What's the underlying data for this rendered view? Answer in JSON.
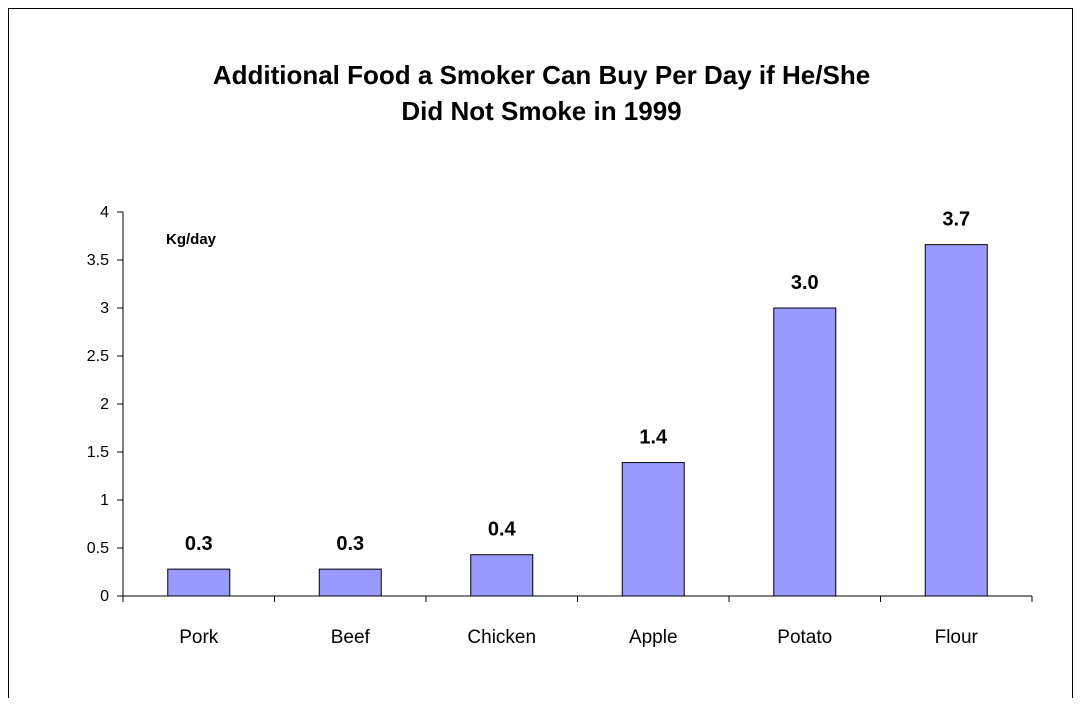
{
  "chart_data": {
    "type": "bar",
    "title_lines": [
      "Additional Food a Smoker Can Buy Per Day if He/She",
      "Did Not Smoke in 1999"
    ],
    "unit_label": "Kg/day",
    "categories": [
      "Pork",
      "Beef",
      "Chicken",
      "Apple",
      "Potato",
      "Flour"
    ],
    "values": [
      0.28,
      0.28,
      0.43,
      1.39,
      3.0,
      3.66
    ],
    "data_labels": [
      "0.3",
      "0.3",
      "0.4",
      "1.4",
      "3.0",
      "3.7"
    ],
    "y_ticks": [
      "0",
      "0.5",
      "1",
      "1.5",
      "2",
      "2.5",
      "3",
      "3.5",
      "4"
    ],
    "ylim": [
      0,
      4
    ],
    "grid": false,
    "legend": "none",
    "colors": {
      "bar_fill": "#9999ff",
      "bar_stroke": "#000000",
      "axis": "#000000",
      "text": "#000000"
    }
  }
}
